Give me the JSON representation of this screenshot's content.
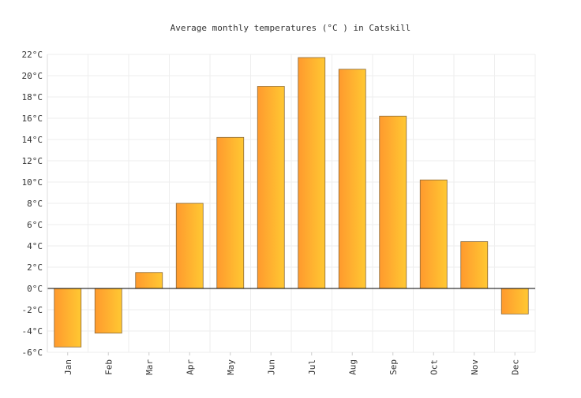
{
  "chart_data": {
    "type": "bar",
    "title": "Average monthly temperatures (°C ) in Catskill",
    "xlabel": "",
    "ylabel": "",
    "categories": [
      "Jan",
      "Feb",
      "Mar",
      "Apr",
      "May",
      "Jun",
      "Jul",
      "Aug",
      "Sep",
      "Oct",
      "Nov",
      "Dec"
    ],
    "values": [
      -5.5,
      -4.2,
      1.5,
      8.0,
      14.2,
      19.0,
      21.7,
      20.6,
      16.2,
      10.2,
      4.4,
      -2.4
    ],
    "ylim": [
      -6,
      22
    ],
    "yticks": [
      "-6°C",
      "-4°C",
      "-2°C",
      "0°C",
      "2°C",
      "4°C",
      "6°C",
      "8°C",
      "10°C",
      "12°C",
      "14°C",
      "16°C",
      "18°C",
      "20°C",
      "22°C"
    ],
    "ytick_values": [
      -6,
      -4,
      -2,
      0,
      2,
      4,
      6,
      8,
      10,
      12,
      14,
      16,
      18,
      20,
      22
    ],
    "grid": true,
    "legend": "none",
    "colors": {
      "bar_start": "#ff9a2e",
      "bar_end": "#ffc832",
      "bar_border": "#8a6a3a",
      "grid": "#eeeeee",
      "zero_line": "#000000"
    }
  }
}
